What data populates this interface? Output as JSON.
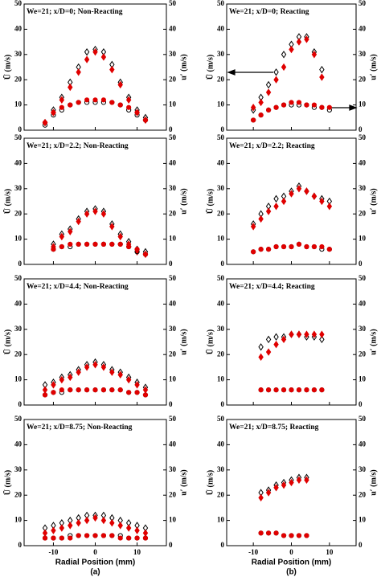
{
  "chart_data": [
    {
      "type": "scatter",
      "title": "We=21; x/D=0; Non-Reacting",
      "ylabel": "Ū (m/s)",
      "y2label": "u′ (m/s)",
      "x": [
        -12,
        -10,
        -8,
        -6,
        -4,
        -2,
        0,
        2,
        4,
        6,
        8,
        10,
        12
      ],
      "series": [
        {
          "color": "#000000",
          "marker": "diamond",
          "filled": false,
          "values": [
            3,
            8,
            13,
            19,
            25,
            31,
            32,
            31,
            26,
            19,
            13,
            8,
            5
          ]
        },
        {
          "color": "#e00000",
          "marker": "diamond",
          "filled": true,
          "values": [
            3,
            7,
            12,
            17,
            23,
            28,
            31,
            29,
            24,
            18,
            12,
            7,
            4
          ]
        },
        {
          "color": "#000000",
          "marker": "circle",
          "filled": false,
          "axis": "y2",
          "values": [
            2,
            6,
            8,
            10,
            11,
            11,
            11,
            11,
            11,
            10,
            8,
            6,
            4
          ]
        },
        {
          "color": "#e00000",
          "marker": "circle",
          "filled": true,
          "axis": "y2",
          "values": [
            3,
            7,
            9,
            10,
            11,
            12,
            12,
            12,
            11,
            10,
            9,
            7,
            4
          ]
        }
      ],
      "xlim": [
        -17,
        17
      ],
      "xticks": [
        -10,
        0,
        10
      ],
      "ylim": [
        0,
        50
      ],
      "yticks": [
        0,
        10,
        20,
        30,
        40,
        50
      ],
      "y2lim": [
        0,
        50
      ],
      "y2ticks": [
        0,
        10,
        20,
        30,
        40,
        50
      ]
    },
    {
      "type": "scatter",
      "title": "We=21; x/D=0; Reacting",
      "ylabel": "Ū (m/s)",
      "y2label": "u′ (m/s)",
      "x": [
        -10,
        -8,
        -6,
        -4,
        -2,
        0,
        2,
        4,
        6,
        8,
        10
      ],
      "series": [
        {
          "color": "#000000",
          "marker": "diamond",
          "filled": false,
          "values": [
            8,
            13,
            18,
            23,
            30,
            34,
            37,
            37,
            31,
            24,
            null
          ]
        },
        {
          "color": "#e00000",
          "marker": "diamond",
          "filled": true,
          "values": [
            9,
            11,
            15,
            20,
            25,
            32,
            35,
            36,
            30,
            21,
            null
          ]
        },
        {
          "color": "#000000",
          "marker": "circle",
          "filled": false,
          "axis": "y2",
          "values": [
            4,
            6,
            8,
            9,
            10,
            10,
            10,
            10,
            9,
            9,
            8
          ]
        },
        {
          "color": "#e00000",
          "marker": "circle",
          "filled": true,
          "axis": "y2",
          "values": [
            4,
            6,
            8,
            9,
            10,
            11,
            11,
            10,
            10,
            9,
            9
          ]
        }
      ],
      "xlim": [
        -17,
        17
      ],
      "xticks": [
        -10,
        0,
        10
      ],
      "ylim": [
        0,
        50
      ],
      "yticks": [
        0,
        10,
        20,
        30,
        40,
        50
      ],
      "y2lim": [
        0,
        50
      ],
      "y2ticks": [
        0,
        10,
        20,
        30,
        40,
        50
      ]
    },
    {
      "type": "scatter",
      "title": "We=21; x/D=2.2; Non-Reacting",
      "ylabel": "Ū (m/s)",
      "y2label": "u′ (m/s)",
      "x": [
        -10,
        -8,
        -6,
        -4,
        -2,
        0,
        2,
        4,
        6,
        8,
        10,
        12
      ],
      "series": [
        {
          "color": "#000000",
          "marker": "diamond",
          "filled": false,
          "values": [
            8,
            12,
            14,
            18,
            21,
            22,
            21,
            16,
            12,
            9,
            6,
            5
          ]
        },
        {
          "color": "#e00000",
          "marker": "diamond",
          "filled": true,
          "values": [
            7,
            11,
            13,
            17,
            20,
            21,
            20,
            15,
            11,
            8,
            5,
            4
          ]
        },
        {
          "color": "#000000",
          "marker": "circle",
          "filled": false,
          "axis": "y2",
          "values": [
            6,
            7,
            7,
            8,
            8,
            8,
            8,
            8,
            8,
            7,
            5,
            4
          ]
        },
        {
          "color": "#e00000",
          "marker": "circle",
          "filled": true,
          "axis": "y2",
          "values": [
            6,
            7,
            8,
            8,
            8,
            8,
            8,
            8,
            8,
            7,
            6,
            4
          ]
        }
      ],
      "xlim": [
        -17,
        17
      ],
      "xticks": [
        -10,
        0,
        10
      ],
      "ylim": [
        0,
        50
      ],
      "yticks": [
        0,
        10,
        20,
        30,
        40,
        50
      ],
      "y2lim": [
        0,
        50
      ],
      "y2ticks": [
        0,
        10,
        20,
        30,
        40,
        50
      ]
    },
    {
      "type": "scatter",
      "title": "We=21; x/D=2.2; Reacting",
      "ylabel": "Ū (m/s)",
      "y2label": "u′ (m/s)",
      "x": [
        -10,
        -8,
        -6,
        -4,
        -2,
        0,
        2,
        4,
        6,
        8,
        10
      ],
      "series": [
        {
          "color": "#000000",
          "marker": "diamond",
          "filled": false,
          "values": [
            16,
            20,
            23,
            26,
            27,
            29,
            31,
            29,
            27,
            26,
            25
          ]
        },
        {
          "color": "#e00000",
          "marker": "diamond",
          "filled": true,
          "values": [
            15,
            18,
            21,
            23,
            25,
            28,
            30,
            29,
            27,
            25,
            23
          ]
        },
        {
          "color": "#000000",
          "marker": "circle",
          "filled": false,
          "axis": "y2",
          "values": [
            5,
            6,
            6,
            7,
            7,
            7,
            8,
            7,
            7,
            6,
            6
          ]
        },
        {
          "color": "#e00000",
          "marker": "circle",
          "filled": true,
          "axis": "y2",
          "values": [
            5,
            6,
            6,
            7,
            7,
            7,
            8,
            7,
            7,
            7,
            6
          ]
        }
      ],
      "xlim": [
        -17,
        17
      ],
      "xticks": [
        -10,
        0,
        10
      ],
      "ylim": [
        0,
        50
      ],
      "yticks": [
        0,
        10,
        20,
        30,
        40,
        50
      ],
      "y2lim": [
        0,
        50
      ],
      "y2ticks": [
        0,
        10,
        20,
        30,
        40,
        50
      ]
    },
    {
      "type": "scatter",
      "title": "We=21; x/D=4.4; Non-Reacting",
      "ylabel": "Ū (m/s)",
      "y2label": "u′ (m/s)",
      "x": [
        -12,
        -10,
        -8,
        -6,
        -4,
        -2,
        0,
        2,
        4,
        6,
        8,
        10,
        12
      ],
      "series": [
        {
          "color": "#000000",
          "marker": "diamond",
          "filled": false,
          "values": [
            8,
            9,
            11,
            12,
            14,
            16,
            17,
            16,
            14,
            13,
            11,
            9,
            7
          ]
        },
        {
          "color": "#e00000",
          "marker": "diamond",
          "filled": true,
          "values": [
            6,
            8,
            10,
            11,
            13,
            15,
            16,
            15,
            13,
            12,
            10,
            8,
            6
          ]
        },
        {
          "color": "#000000",
          "marker": "circle",
          "filled": false,
          "axis": "y2",
          "values": [
            4,
            5,
            5,
            6,
            6,
            6,
            6,
            6,
            6,
            6,
            5,
            5,
            4
          ]
        },
        {
          "color": "#e00000",
          "marker": "circle",
          "filled": true,
          "axis": "y2",
          "values": [
            4,
            5,
            6,
            6,
            6,
            6,
            6,
            6,
            6,
            6,
            5,
            5,
            4
          ]
        }
      ],
      "xlim": [
        -17,
        17
      ],
      "xticks": [
        -10,
        0,
        10
      ],
      "ylim": [
        0,
        50
      ],
      "yticks": [
        0,
        10,
        20,
        30,
        40,
        50
      ],
      "y2lim": [
        0,
        50
      ],
      "y2ticks": [
        0,
        10,
        20,
        30,
        40,
        50
      ]
    },
    {
      "type": "scatter",
      "title": "We=21; x/D=4.4; Reacting",
      "ylabel": "Ū (m/s)",
      "y2label": "u′ (m/s)",
      "x": [
        -8,
        -6,
        -4,
        -2,
        0,
        2,
        4,
        6,
        8
      ],
      "series": [
        {
          "color": "#000000",
          "marker": "diamond",
          "filled": false,
          "values": [
            23,
            26,
            27,
            27,
            28,
            28,
            27,
            27,
            26
          ]
        },
        {
          "color": "#e00000",
          "marker": "diamond",
          "filled": true,
          "values": [
            19,
            21,
            24,
            26,
            28,
            28,
            28,
            28,
            28
          ]
        },
        {
          "color": "#000000",
          "marker": "circle",
          "filled": false,
          "axis": "y2",
          "values": [
            6,
            6,
            6,
            6,
            6,
            6,
            6,
            6,
            6
          ]
        },
        {
          "color": "#e00000",
          "marker": "circle",
          "filled": true,
          "axis": "y2",
          "values": [
            6,
            6,
            6,
            6,
            6,
            6,
            6,
            6,
            6
          ]
        }
      ],
      "xlim": [
        -17,
        17
      ],
      "xticks": [
        -10,
        0,
        10
      ],
      "ylim": [
        0,
        50
      ],
      "yticks": [
        0,
        10,
        20,
        30,
        40,
        50
      ],
      "y2lim": [
        0,
        50
      ],
      "y2ticks": [
        0,
        10,
        20,
        30,
        40,
        50
      ]
    },
    {
      "type": "scatter",
      "title": "We=21; x/D=8.75; Non-Reacting",
      "ylabel": "Ū (m/s)",
      "y2label": "u′ (m/s)",
      "x": [
        -12,
        -10,
        -8,
        -6,
        -4,
        -2,
        0,
        2,
        4,
        6,
        8,
        10,
        12
      ],
      "series": [
        {
          "color": "#000000",
          "marker": "diamond",
          "filled": false,
          "values": [
            7,
            8,
            9,
            10,
            11,
            12,
            12,
            12,
            11,
            10,
            9,
            8,
            7
          ]
        },
        {
          "color": "#e00000",
          "marker": "diamond",
          "filled": true,
          "values": [
            5,
            6,
            7,
            8,
            9,
            10,
            11,
            10,
            9,
            8,
            7,
            6,
            5
          ]
        },
        {
          "color": "#000000",
          "marker": "circle",
          "filled": false,
          "axis": "y2",
          "values": [
            3,
            3,
            3,
            4,
            4,
            4,
            4,
            4,
            4,
            4,
            3,
            3,
            3
          ]
        },
        {
          "color": "#e00000",
          "marker": "circle",
          "filled": true,
          "axis": "y2",
          "values": [
            3,
            3,
            3,
            3,
            4,
            4,
            4,
            4,
            4,
            3,
            3,
            3,
            3
          ]
        }
      ],
      "xlim": [
        -17,
        17
      ],
      "xticks": [
        -10,
        0,
        10
      ],
      "ylim": [
        0,
        50
      ],
      "yticks": [
        0,
        10,
        20,
        30,
        40,
        50
      ],
      "y2lim": [
        0,
        50
      ],
      "y2ticks": [
        0,
        10,
        20,
        30,
        40,
        50
      ],
      "xlabel": "Radial Position (mm)",
      "panel_label": "(a)"
    },
    {
      "type": "scatter",
      "title": "We=21; x/D=8.75; Reacting",
      "ylabel": "Ū (m/s)",
      "y2label": "u′ (m/s)",
      "x": [
        -8,
        -6,
        -4,
        -2,
        0,
        2,
        4
      ],
      "series": [
        {
          "color": "#000000",
          "marker": "diamond",
          "filled": false,
          "values": [
            21,
            22,
            24,
            25,
            26,
            27,
            27
          ]
        },
        {
          "color": "#e00000",
          "marker": "diamond",
          "filled": true,
          "values": [
            19,
            21,
            23,
            24,
            25,
            26,
            26
          ]
        },
        {
          "color": "#000000",
          "marker": "circle",
          "filled": false,
          "axis": "y2",
          "values": [
            5,
            5,
            5,
            4,
            4,
            4,
            4
          ]
        },
        {
          "color": "#e00000",
          "marker": "circle",
          "filled": true,
          "axis": "y2",
          "values": [
            5,
            5,
            5,
            4,
            4,
            4,
            4
          ]
        }
      ],
      "xlim": [
        -17,
        17
      ],
      "xticks": [
        -10,
        0,
        10
      ],
      "ylim": [
        0,
        50
      ],
      "yticks": [
        0,
        10,
        20,
        30,
        40,
        50
      ],
      "y2lim": [
        0,
        50
      ],
      "y2ticks": [
        0,
        10,
        20,
        30,
        40,
        50
      ],
      "xlabel": "Radial Position (mm)",
      "panel_label": "(b)"
    }
  ]
}
